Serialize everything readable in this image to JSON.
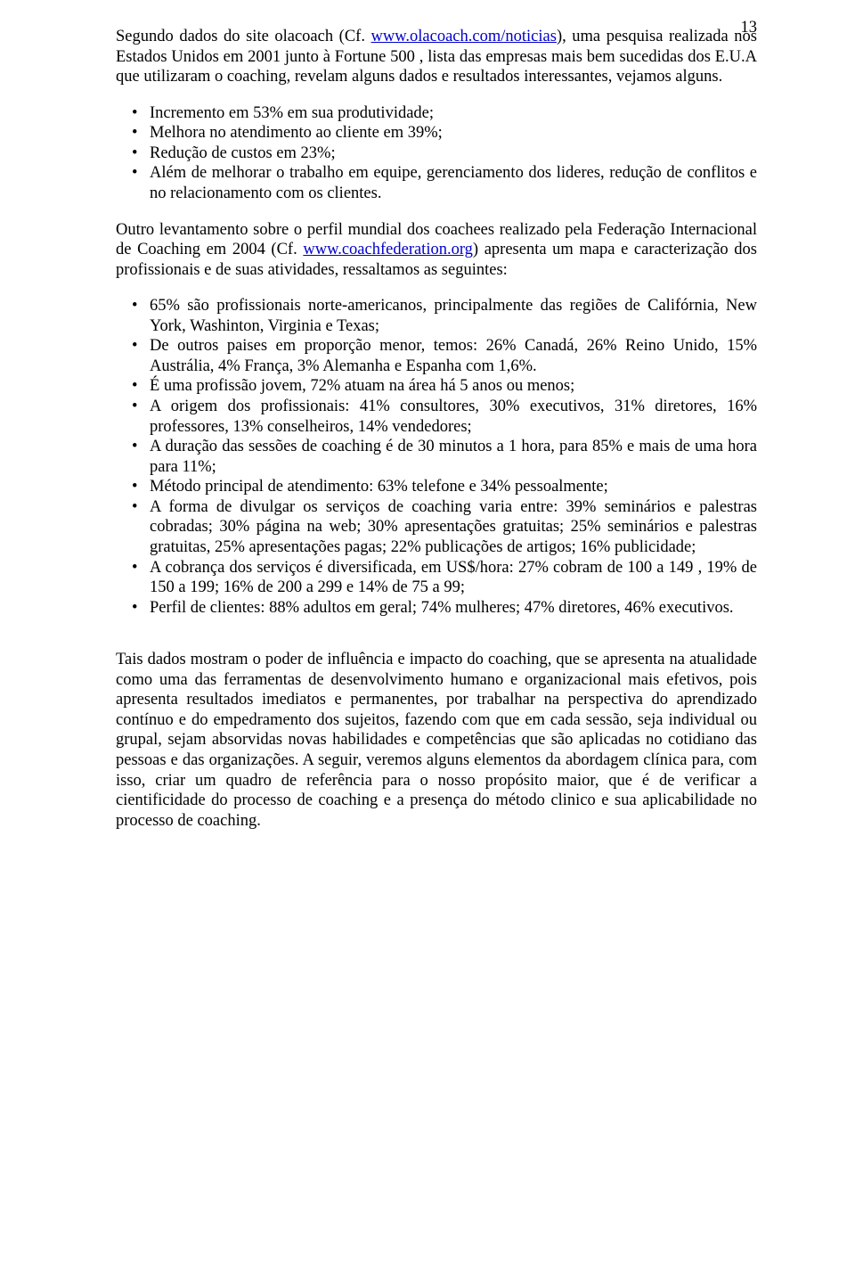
{
  "pageNumber": "13",
  "colors": {
    "text": "#000000",
    "background": "#ffffff",
    "link": "#0000cc"
  },
  "typography": {
    "fontFamily": "Times New Roman",
    "bodyFontSizePx": 18.5,
    "lineHeight": 1.22
  },
  "intro": {
    "pre": "Segundo dados do site olacoach (Cf. ",
    "link1": "www.olacoach.com/noticias",
    "mid": "), uma pesquisa realizada nos Estados Unidos em 2001 junto à Fortune 500 , lista das empresas mais bem sucedidas dos E.U.A que utilizaram o coaching, revelam alguns dados e resultados interessantes, vejamos alguns."
  },
  "list1": [
    "Incremento em 53%    em sua produtividade;",
    "Melhora no atendimento ao cliente em 39%;",
    "Redução de custos em 23%;",
    "Além de melhorar o trabalho em equipe, gerenciamento dos lideres, redução de conflitos e no relacionamento com os clientes."
  ],
  "para2": {
    "pre": "Outro levantamento sobre o perfil mundial dos coachees realizado pela Federação Internacional de Coaching em 2004 (Cf. ",
    "link2": "www.coachfederation.org",
    "post": ") apresenta um mapa e caracterização dos profissionais e de suas atividades, ressaltamos as seguintes:"
  },
  "list2": [
    "65% são profissionais norte-americanos, principalmente das regiões de Califórnia, New York, Washinton, Virginia e Texas;",
    "De outros paises em proporção menor, temos: 26% Canadá, 26% Reino Unido, 15% Austrália, 4% França, 3% Alemanha e Espanha com 1,6%.",
    "É uma profissão jovem, 72% atuam na área há 5 anos ou menos;",
    "A origem dos profissionais: 41% consultores, 30% executivos, 31% diretores, 16% professores, 13% conselheiros, 14% vendedores;",
    "A duração das sessões de coaching é de 30 minutos a 1 hora, para 85% e mais de uma hora para 11%;",
    "Método principal de atendimento: 63% telefone e 34% pessoalmente;",
    "A forma de divulgar os serviços de coaching varia entre: 39% seminários e palestras cobradas; 30% página na web; 30% apresentações gratuitas; 25% seminários e palestras gratuitas, 25% apresentações pagas; 22% publicações de artigos; 16% publicidade;",
    "A cobrança dos serviços é diversificada, em US$/hora: 27% cobram de 100 a 149 , 19% de 150 a 199; 16% de 200 a 299 e 14% de 75 a 99;",
    "Perfil de clientes: 88% adultos em geral; 74% mulheres; 47% diretores, 46% executivos."
  ],
  "closing": "Tais dados mostram o poder de influência e impacto do coaching, que se apresenta na atualidade como uma das ferramentas de desenvolvimento humano e organizacional mais efetivos, pois apresenta resultados imediatos e permanentes, por trabalhar na perspectiva do aprendizado contínuo e do empedramento dos sujeitos, fazendo com que em cada sessão, seja individual ou grupal, sejam absorvidas novas habilidades e competências que são aplicadas no cotidiano das pessoas e das organizações.  A seguir, veremos alguns elementos da abordagem clínica para, com isso, criar um quadro de referência para o nosso propósito maior, que é de verificar a cientificidade do processo de coaching e a presença do método clinico e sua aplicabilidade no processo de coaching."
}
